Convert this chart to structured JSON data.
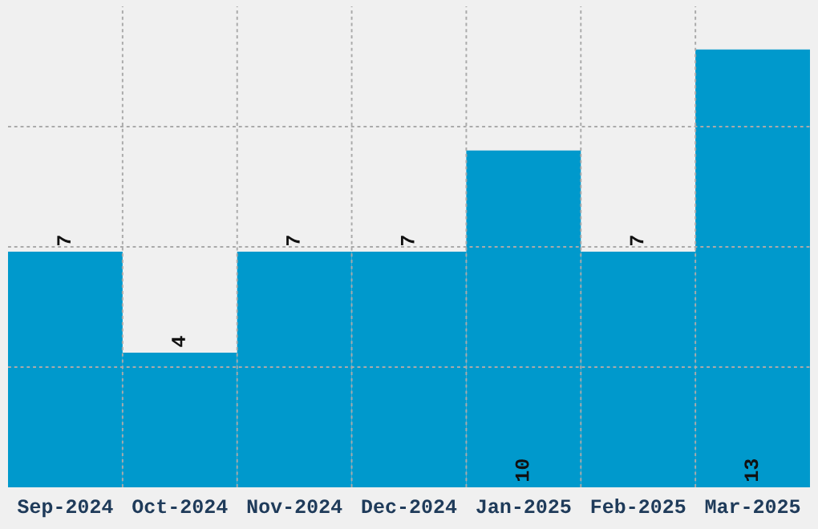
{
  "chart_data": {
    "type": "bar",
    "categories": [
      "Sep-2024",
      "Oct-2024",
      "Nov-2024",
      "Dec-2024",
      "Jan-2025",
      "Feb-2025",
      "Mar-2025"
    ],
    "values": [
      7,
      4,
      7,
      7,
      10,
      7,
      13
    ],
    "color": "#0099cc",
    "data_labels": true,
    "ylim": [
      0,
      14.28
    ],
    "tick_labels": "x",
    "grid": true
  }
}
